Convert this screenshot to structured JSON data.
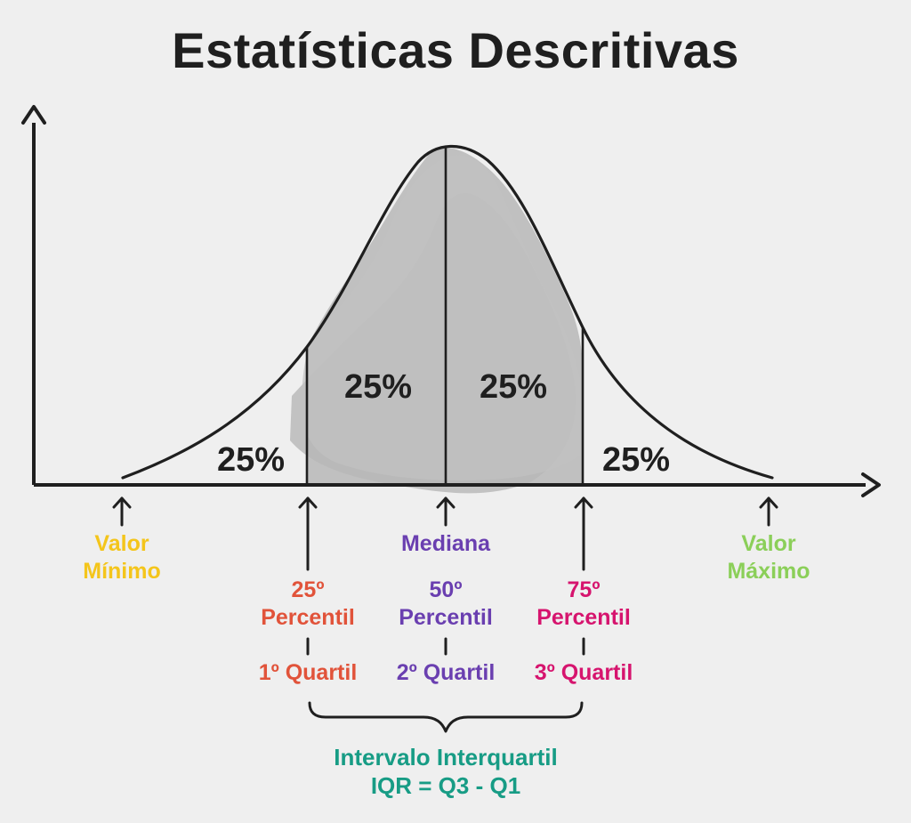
{
  "title": "Estatísticas Descritivas",
  "percentages": {
    "left_tail": "25%",
    "left_center": "25%",
    "right_center": "25%",
    "right_tail": "25%"
  },
  "labels": {
    "min_line1": "Valor",
    "min_line2": "Mínimo",
    "median": "Mediana",
    "max_line1": "Valor",
    "max_line2": "Máximo",
    "p25_line1": "25º",
    "p25_line2": "Percentil",
    "p50_line1": "50º",
    "p50_line2": "Percentil",
    "p75_line1": "75º",
    "p75_line2": "Percentil",
    "q1": "1º Quartil",
    "q2": "2º Quartil",
    "q3": "3º Quartil",
    "iqr_line1": "Intervalo Interquartil",
    "iqr_line2": "IQR = Q3 - Q1"
  },
  "colors": {
    "axis": "#1f1f1f",
    "curve": "#1f1f1f",
    "fill": "#bdbdbd",
    "gold": "#f4c51b",
    "purple": "#6a3fb0",
    "green": "#8bcf59",
    "orange": "#e1533a",
    "pink": "#d6146e",
    "teal": "#179c85"
  }
}
